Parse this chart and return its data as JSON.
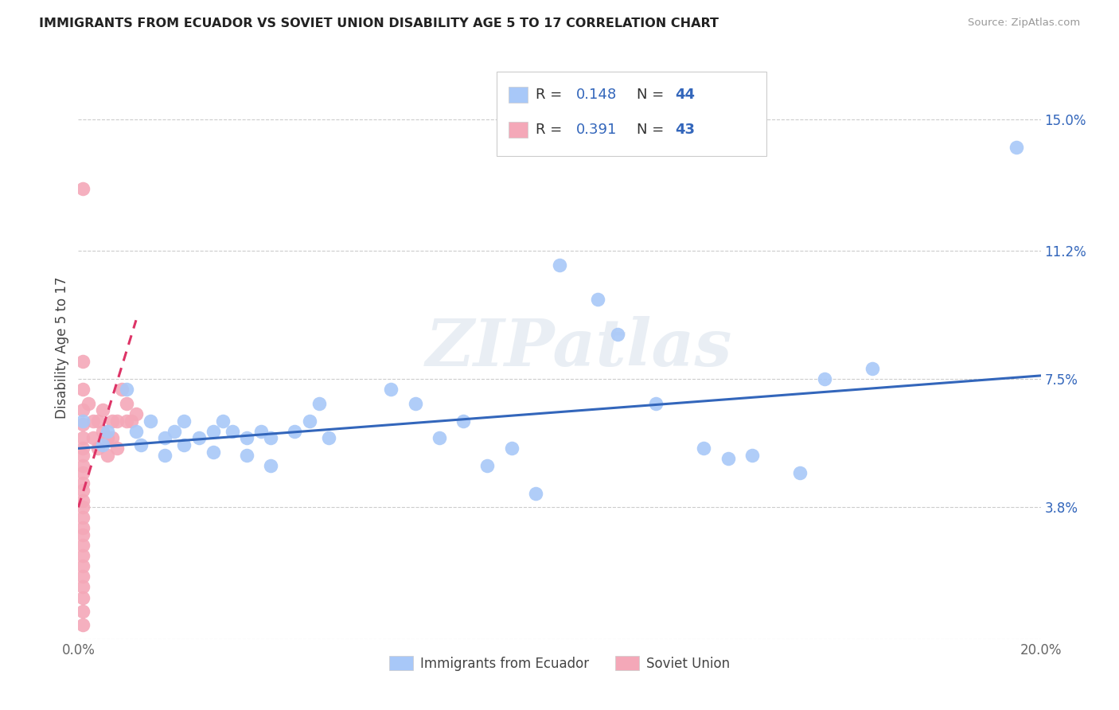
{
  "title": "IMMIGRANTS FROM ECUADOR VS SOVIET UNION DISABILITY AGE 5 TO 17 CORRELATION CHART",
  "source": "Source: ZipAtlas.com",
  "ylabel": "Disability Age 5 to 17",
  "xlim": [
    0.0,
    0.2
  ],
  "ylim": [
    0.0,
    0.168
  ],
  "yticks": [
    0.0,
    0.038,
    0.075,
    0.112,
    0.15
  ],
  "ytick_labels": [
    "",
    "3.8%",
    "7.5%",
    "11.2%",
    "15.0%"
  ],
  "xticks": [
    0.0,
    0.05,
    0.1,
    0.15,
    0.2
  ],
  "xtick_labels": [
    "0.0%",
    "",
    "",
    "",
    "20.0%"
  ],
  "ecuador_R": "0.148",
  "ecuador_N": "44",
  "soviet_R": "0.391",
  "soviet_N": "43",
  "ecuador_color": "#a8c8f8",
  "soviet_color": "#f4a8b8",
  "trend_ecuador_color": "#3366bb",
  "trend_soviet_color": "#dd3366",
  "watermark_text": "ZIPatlas",
  "ecuador_scatter": [
    [
      0.001,
      0.063
    ],
    [
      0.005,
      0.056
    ],
    [
      0.006,
      0.06
    ],
    [
      0.01,
      0.072
    ],
    [
      0.012,
      0.06
    ],
    [
      0.013,
      0.056
    ],
    [
      0.015,
      0.063
    ],
    [
      0.018,
      0.058
    ],
    [
      0.018,
      0.053
    ],
    [
      0.02,
      0.06
    ],
    [
      0.022,
      0.063
    ],
    [
      0.022,
      0.056
    ],
    [
      0.025,
      0.058
    ],
    [
      0.028,
      0.06
    ],
    [
      0.028,
      0.054
    ],
    [
      0.03,
      0.063
    ],
    [
      0.032,
      0.06
    ],
    [
      0.035,
      0.058
    ],
    [
      0.035,
      0.053
    ],
    [
      0.038,
      0.06
    ],
    [
      0.04,
      0.058
    ],
    [
      0.04,
      0.05
    ],
    [
      0.045,
      0.06
    ],
    [
      0.048,
      0.063
    ],
    [
      0.05,
      0.068
    ],
    [
      0.052,
      0.058
    ],
    [
      0.065,
      0.072
    ],
    [
      0.07,
      0.068
    ],
    [
      0.075,
      0.058
    ],
    [
      0.08,
      0.063
    ],
    [
      0.085,
      0.05
    ],
    [
      0.09,
      0.055
    ],
    [
      0.095,
      0.042
    ],
    [
      0.1,
      0.108
    ],
    [
      0.108,
      0.098
    ],
    [
      0.112,
      0.088
    ],
    [
      0.12,
      0.068
    ],
    [
      0.13,
      0.055
    ],
    [
      0.135,
      0.052
    ],
    [
      0.14,
      0.053
    ],
    [
      0.15,
      0.048
    ],
    [
      0.155,
      0.075
    ],
    [
      0.165,
      0.078
    ],
    [
      0.195,
      0.142
    ]
  ],
  "soviet_scatter": [
    [
      0.001,
      0.13
    ],
    [
      0.001,
      0.08
    ],
    [
      0.001,
      0.072
    ],
    [
      0.001,
      0.066
    ],
    [
      0.001,
      0.062
    ],
    [
      0.001,
      0.058
    ],
    [
      0.001,
      0.055
    ],
    [
      0.001,
      0.053
    ],
    [
      0.001,
      0.05
    ],
    [
      0.001,
      0.048
    ],
    [
      0.001,
      0.045
    ],
    [
      0.001,
      0.043
    ],
    [
      0.001,
      0.04
    ],
    [
      0.001,
      0.038
    ],
    [
      0.001,
      0.035
    ],
    [
      0.001,
      0.032
    ],
    [
      0.001,
      0.03
    ],
    [
      0.001,
      0.027
    ],
    [
      0.001,
      0.024
    ],
    [
      0.001,
      0.021
    ],
    [
      0.001,
      0.018
    ],
    [
      0.001,
      0.015
    ],
    [
      0.001,
      0.012
    ],
    [
      0.001,
      0.008
    ],
    [
      0.001,
      0.004
    ],
    [
      0.002,
      0.068
    ],
    [
      0.003,
      0.063
    ],
    [
      0.003,
      0.058
    ],
    [
      0.004,
      0.063
    ],
    [
      0.004,
      0.055
    ],
    [
      0.005,
      0.06
    ],
    [
      0.005,
      0.066
    ],
    [
      0.006,
      0.058
    ],
    [
      0.006,
      0.053
    ],
    [
      0.007,
      0.063
    ],
    [
      0.007,
      0.058
    ],
    [
      0.008,
      0.063
    ],
    [
      0.008,
      0.055
    ],
    [
      0.009,
      0.072
    ],
    [
      0.01,
      0.063
    ],
    [
      0.01,
      0.068
    ],
    [
      0.011,
      0.063
    ],
    [
      0.012,
      0.065
    ]
  ],
  "ecuador_trend_x": [
    0.0,
    0.2
  ],
  "ecuador_trend_y": [
    0.055,
    0.076
  ],
  "soviet_trend_x": [
    0.0,
    0.012
  ],
  "soviet_trend_y": [
    0.038,
    0.092
  ]
}
